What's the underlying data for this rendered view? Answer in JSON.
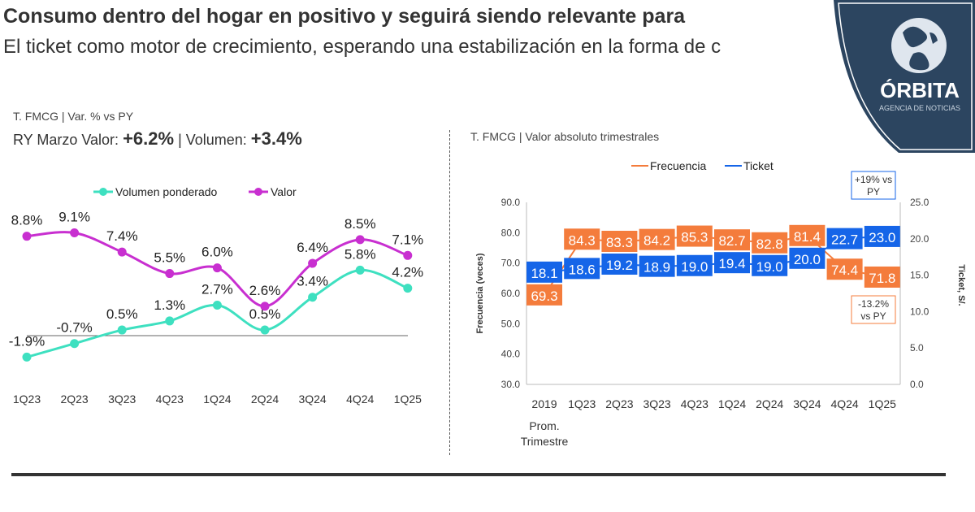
{
  "header": {
    "title": "Consumo dentro del hogar en positivo y seguirá siendo relevante para",
    "subtitle": "El ticket como motor de crecimiento, esperando una estabilización en la forma de c"
  },
  "left": {
    "label": "T. FMCG | Var. % vs PY",
    "summary_prefix": "RY Marzo Valor: ",
    "summary_value": "+6.2%",
    "summary_mid": " | Volumen: ",
    "summary_volume": "+3.4%"
  },
  "right": {
    "label": "T. FMCG | Valor absoluto trimestrales"
  },
  "logo": {
    "name": "ÓRBITA",
    "tagline": "AGENCIA DE NOTICIAS",
    "color": "#2c4560"
  },
  "chart_data": [
    {
      "type": "line",
      "categories": [
        "1Q23",
        "2Q23",
        "3Q23",
        "4Q23",
        "1Q24",
        "2Q24",
        "3Q24",
        "4Q24",
        "1Q25"
      ],
      "series": [
        {
          "name": "Volumen ponderado",
          "color": "#3ee0c0",
          "values": [
            -1.9,
            -0.7,
            0.5,
            1.3,
            2.7,
            0.5,
            3.4,
            5.8,
            4.2
          ]
        },
        {
          "name": "Valor",
          "color": "#c82fd0",
          "values": [
            8.8,
            9.1,
            7.4,
            5.5,
            6.0,
            2.6,
            6.4,
            8.5,
            7.1
          ]
        }
      ],
      "unit": "%",
      "legend": "top"
    },
    {
      "type": "line",
      "categories": [
        "2019",
        "1Q23",
        "2Q23",
        "3Q23",
        "4Q23",
        "1Q24",
        "2Q24",
        "3Q24",
        "4Q24",
        "1Q25"
      ],
      "category_note": "Prom. Trimestre",
      "ylabel": "Frecuencia (veces)",
      "y2label": "Ticket, S/.",
      "ylim": [
        30,
        90
      ],
      "yticks": [
        "30.0",
        "40.0",
        "50.0",
        "60.0",
        "70.0",
        "80.0",
        "90.0"
      ],
      "y2lim": [
        0,
        25
      ],
      "y2ticks": [
        "0.0",
        "5.0",
        "10.0",
        "15.0",
        "20.0",
        "25.0"
      ],
      "series": [
        {
          "name": "Frecuencia",
          "axis": "left",
          "color": "#f47c3c",
          "values": [
            69.3,
            84.3,
            83.3,
            84.2,
            85.3,
            82.7,
            82.8,
            81.4,
            74.4,
            71.8
          ]
        },
        {
          "name": "Ticket",
          "axis": "right",
          "color": "#1565e8",
          "values": [
            18.1,
            18.6,
            19.2,
            18.9,
            19.0,
            19.4,
            19.0,
            20.0,
            22.7,
            23.0
          ]
        }
      ],
      "annotations": [
        "+19% vs PY",
        "-13.2% vs PY"
      ],
      "legend": "top"
    }
  ]
}
